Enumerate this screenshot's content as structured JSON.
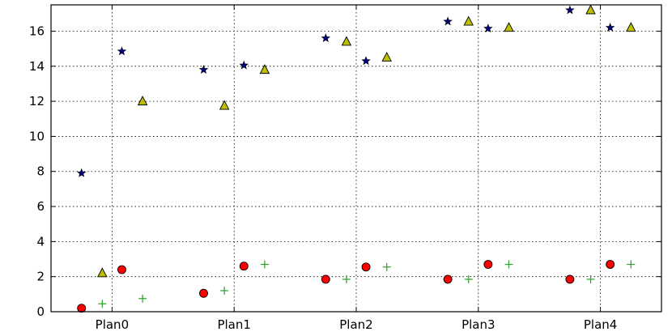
{
  "chart_data": {
    "type": "scatter",
    "title": "",
    "xlabel": "",
    "ylabel": "",
    "categories": [
      "Plan0",
      "Plan1",
      "Plan2",
      "Plan3",
      "Plan4"
    ],
    "ylim": [
      0,
      17.5
    ],
    "yticks": [
      0,
      2,
      4,
      6,
      8,
      10,
      12,
      14,
      16
    ],
    "grid": true,
    "legend": "none",
    "series": [
      {
        "marker": "circle",
        "color": "#ff0000",
        "points": [
          {
            "x": -0.25,
            "y": 0.2
          },
          {
            "x": 0.08,
            "y": 2.4
          },
          {
            "x": 0.75,
            "y": 1.05
          },
          {
            "x": 1.08,
            "y": 2.6
          },
          {
            "x": 1.75,
            "y": 1.85
          },
          {
            "x": 2.08,
            "y": 2.55
          },
          {
            "x": 2.75,
            "y": 1.85
          },
          {
            "x": 3.08,
            "y": 2.7
          },
          {
            "x": 3.75,
            "y": 1.85
          },
          {
            "x": 4.08,
            "y": 2.7
          }
        ]
      },
      {
        "marker": "plus",
        "color": "#2ca02c",
        "points": [
          {
            "x": -0.08,
            "y": 0.45
          },
          {
            "x": 0.25,
            "y": 0.75
          },
          {
            "x": 0.92,
            "y": 1.2
          },
          {
            "x": 1.25,
            "y": 2.7
          },
          {
            "x": 1.92,
            "y": 1.85
          },
          {
            "x": 2.25,
            "y": 2.55
          },
          {
            "x": 2.92,
            "y": 1.85
          },
          {
            "x": 3.25,
            "y": 2.7
          },
          {
            "x": 3.92,
            "y": 1.85
          },
          {
            "x": 4.25,
            "y": 2.7
          }
        ]
      },
      {
        "marker": "star",
        "color": "#000080",
        "points": [
          {
            "x": -0.25,
            "y": 7.9
          },
          {
            "x": 0.08,
            "y": 14.85
          },
          {
            "x": 0.75,
            "y": 13.8
          },
          {
            "x": 1.08,
            "y": 14.05
          },
          {
            "x": 1.75,
            "y": 15.6
          },
          {
            "x": 2.08,
            "y": 14.3
          },
          {
            "x": 2.75,
            "y": 16.55
          },
          {
            "x": 3.08,
            "y": 16.15
          },
          {
            "x": 3.75,
            "y": 17.2
          },
          {
            "x": 4.08,
            "y": 16.2
          }
        ]
      },
      {
        "marker": "triangle",
        "color": "#bfbf00",
        "points": [
          {
            "x": -0.08,
            "y": 2.2
          },
          {
            "x": 0.25,
            "y": 12.0
          },
          {
            "x": 0.92,
            "y": 11.75
          },
          {
            "x": 1.25,
            "y": 13.8
          },
          {
            "x": 1.92,
            "y": 15.4
          },
          {
            "x": 2.25,
            "y": 14.5
          },
          {
            "x": 2.92,
            "y": 16.55
          },
          {
            "x": 3.25,
            "y": 16.2
          },
          {
            "x": 3.92,
            "y": 17.2
          },
          {
            "x": 4.25,
            "y": 16.2
          }
        ]
      }
    ]
  }
}
